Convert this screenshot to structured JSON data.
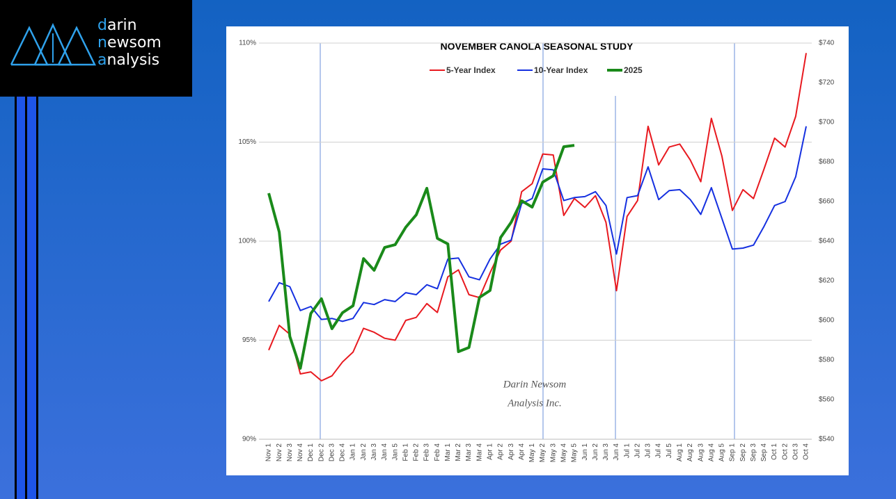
{
  "logo": [
    "darin",
    "newsom",
    "analysis"
  ],
  "chart_data": {
    "type": "line",
    "title": "NOVEMBER CANOLA SEASONAL STUDY",
    "categories": [
      "Nov 1",
      "Nov 2",
      "Nov 3",
      "Nov 4",
      "Dec 1",
      "Dec 2",
      "Dec 3",
      "Dec 4",
      "Jan 1",
      "Jan 2",
      "Jan 3",
      "Jan 4",
      "Jan 5",
      "Feb 1",
      "Feb 2",
      "Feb 3",
      "Feb 4",
      "Mar 1",
      "Mar 2",
      "Mar 3",
      "Mar 4",
      "Apr 1",
      "Apr 2",
      "Apr 3",
      "Apr 4",
      "May 1",
      "May 2",
      "May 3",
      "May 4",
      "May 5",
      "Jun 1",
      "Jun 2",
      "Jun 3",
      "Jun 4",
      "Jul 1",
      "Jul 2",
      "Jul 3",
      "Jul 4",
      "Jul 5",
      "Aug 1",
      "Aug 2",
      "Aug 3",
      "Aug 4",
      "Aug 5",
      "Sep 1",
      "Sep 2",
      "Sep 3",
      "Sep 4",
      "Oct 1",
      "Oct 2",
      "Oct 3",
      "Oct 4"
    ],
    "series": [
      {
        "name": "5-Year Index",
        "color": "#e8191f",
        "values": [
          94.5,
          95.75,
          95.3,
          93.3,
          93.4,
          92.95,
          93.2,
          93.9,
          94.4,
          95.6,
          95.4,
          95.1,
          95.0,
          96.0,
          96.15,
          96.85,
          96.4,
          98.2,
          98.55,
          97.3,
          97.15,
          98.4,
          99.55,
          100.0,
          102.5,
          102.9,
          104.4,
          104.35,
          101.3,
          102.15,
          101.7,
          102.3,
          100.95,
          97.5,
          101.25,
          102.05,
          105.8,
          103.85,
          104.75,
          104.9,
          104.1,
          103.0,
          106.2,
          104.3,
          101.55,
          102.6,
          102.15,
          103.65,
          105.2,
          104.75,
          106.3,
          109.5
        ]
      },
      {
        "name": "10-Year Index",
        "color": "#1530e0",
        "values": [
          96.95,
          97.9,
          97.7,
          96.5,
          96.7,
          96.05,
          96.1,
          95.95,
          96.1,
          96.9,
          96.8,
          97.05,
          96.95,
          97.4,
          97.3,
          97.8,
          97.6,
          99.1,
          99.15,
          98.2,
          98.05,
          99.1,
          99.85,
          100.05,
          101.9,
          102.15,
          103.65,
          103.6,
          102.05,
          102.2,
          102.25,
          102.5,
          101.8,
          99.35,
          102.2,
          102.3,
          103.75,
          102.1,
          102.55,
          102.6,
          102.1,
          101.35,
          102.7,
          101.15,
          99.6,
          99.65,
          99.8,
          100.75,
          101.8,
          102.0,
          103.25,
          105.8
        ]
      },
      {
        "name": "2025",
        "color": "#1a8a1a",
        "axis": "y2",
        "values": [
          664.2,
          644.6,
          591.9,
          575.8,
          603.5,
          610.9,
          595.8,
          603.9,
          607.4,
          631.2,
          625.3,
          636.8,
          638.2,
          647.0,
          653.3,
          666.7,
          641.4,
          638.6,
          584.2,
          586.3,
          611.6,
          615.1,
          641.8,
          649.5,
          660.4,
          657.2,
          669.8,
          673.0,
          687.7,
          688.4,
          null,
          null,
          null,
          null,
          null,
          null,
          null,
          null,
          null,
          null,
          null,
          null,
          null,
          null,
          null,
          null,
          null,
          null,
          null,
          null,
          null,
          null
        ]
      }
    ],
    "ylim": [
      90,
      110
    ],
    "yticks": [
      {
        "value": 90,
        "label": "90%"
      },
      {
        "value": 95,
        "label": "95%"
      },
      {
        "value": 100,
        "label": "100%"
      },
      {
        "value": 105,
        "label": "105%"
      },
      {
        "value": 110,
        "label": "110%"
      }
    ],
    "y2lim": [
      540,
      740
    ],
    "y2ticks": [
      {
        "value": 540,
        "label": "$540"
      },
      {
        "value": 560,
        "label": "$560"
      },
      {
        "value": 580,
        "label": "$580"
      },
      {
        "value": 600,
        "label": "$600"
      },
      {
        "value": 620,
        "label": "$620"
      },
      {
        "value": 640,
        "label": "$640"
      },
      {
        "value": 660,
        "label": "$660"
      },
      {
        "value": 680,
        "label": "$680"
      },
      {
        "value": 700,
        "label": "$700"
      },
      {
        "value": 720,
        "label": "$720"
      },
      {
        "value": 740,
        "label": "$740"
      }
    ],
    "grid": true,
    "annotations": [
      "Darin Newsom",
      "Analysis Inc."
    ]
  }
}
